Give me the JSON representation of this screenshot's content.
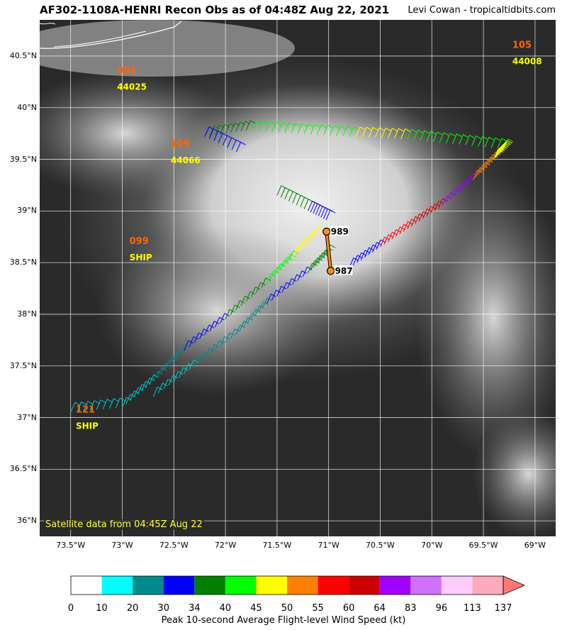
{
  "header": {
    "title": "AF302-1108A-HENRI Recon Obs as of 04:48Z Aug 22, 2021",
    "credit": "Levi Cowan - tropicaltidbits.com"
  },
  "map": {
    "lon_range": [
      -73.8,
      -68.8
    ],
    "lat_range": [
      35.85,
      40.85
    ],
    "lat_ticks": [
      "40.5°N",
      "40°N",
      "39.5°N",
      "39°N",
      "38.5°N",
      "38°N",
      "37.5°N",
      "37°N",
      "36.5°N",
      "36°N"
    ],
    "lon_ticks": [
      "73.5°W",
      "73°W",
      "72.5°W",
      "72°W",
      "71.5°W",
      "71°W",
      "70.5°W",
      "70°W",
      "69.5°W",
      "69°W"
    ],
    "satellite_label": "Satellite data from 04:45Z Aug 22",
    "stations": [
      {
        "id": "092",
        "name": "44025",
        "lon": -73.05,
        "lat": 40.33,
        "color": "#ff6600"
      },
      {
        "id": "105",
        "name": "44066",
        "lon": -72.53,
        "lat": 39.62,
        "color": "#ff6600"
      },
      {
        "id": "099",
        "name": "SHIP",
        "lon": -72.93,
        "lat": 38.68,
        "color": "#ff6600"
      },
      {
        "id": "121",
        "name": "SHIP",
        "lon": -73.45,
        "lat": 37.05,
        "color": "#ff6600"
      },
      {
        "id": "105",
        "name": "44008",
        "lon": -69.22,
        "lat": 40.58,
        "color": "#ff6600"
      }
    ],
    "pressure_obs": [
      {
        "value": "989",
        "lon": -71.02,
        "lat": 38.8
      },
      {
        "value": "987",
        "lon": -70.98,
        "lat": 38.42
      }
    ]
  },
  "colorbar": {
    "label": "Peak 10-second Average Flight-level Wind Speed (kt)",
    "ticks": [
      "0",
      "10",
      "20",
      "30",
      "34",
      "40",
      "45",
      "50",
      "55",
      "60",
      "64",
      "83",
      "96",
      "113",
      "137"
    ],
    "colors": [
      "#ffffff",
      "#00ffff",
      "#008b8b",
      "#0000ff",
      "#008000",
      "#00ff00",
      "#ffff00",
      "#ff8000",
      "#ff0000",
      "#cc0000",
      "#a000ff",
      "#d070ff",
      "#ffccff",
      "#ffaabb"
    ]
  }
}
